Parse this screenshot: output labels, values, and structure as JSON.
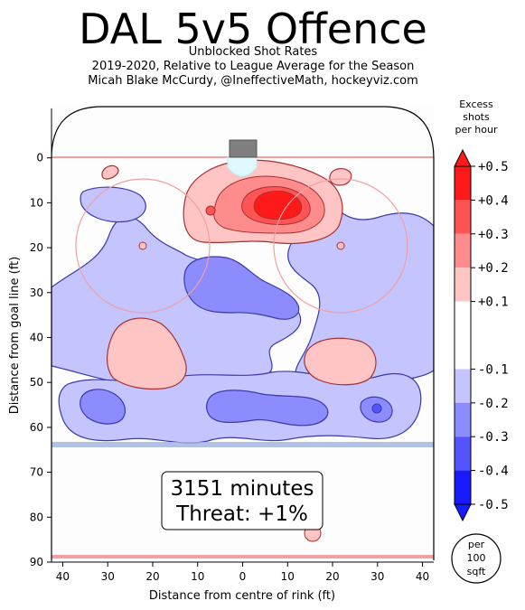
{
  "header": {
    "title": "DAL 5v5 Offence",
    "subtitle1": "Unblocked Shot Rates",
    "subtitle2": "2019-2020, Relative to League Average for the Season",
    "subtitle3": "Micah Blake McCurdy, @IneffectiveMath, hockeyviz.com"
  },
  "chart_data": {
    "type": "heatmap",
    "xlabel": "Distance from centre of rink (ft)",
    "ylabel": "Distance from goal line (ft)",
    "xlim": [
      42.5,
      -42.5
    ],
    "ylim": [
      -11,
      90
    ],
    "x_ticks": [
      40,
      30,
      20,
      10,
      0,
      10,
      20,
      30,
      40
    ],
    "y_ticks": [
      0,
      10,
      20,
      30,
      40,
      50,
      60,
      70,
      80,
      90
    ],
    "annotation": [
      "3151 minutes",
      "Threat: +1%"
    ],
    "colorbar": {
      "title": [
        "Excess",
        "shots",
        "per hour"
      ],
      "unit_note": [
        "per",
        "100",
        "sqft"
      ],
      "ticks": [
        "+0.5",
        "+0.4",
        "+0.3",
        "+0.2",
        "+0.1",
        "-0.1",
        "-0.2",
        "-0.3",
        "-0.4",
        "-0.5"
      ],
      "levels": [
        {
          "from": 0.4,
          "to": 0.5,
          "color": "#ff1a1a"
        },
        {
          "from": 0.3,
          "to": 0.4,
          "color": "#ff5454"
        },
        {
          "from": 0.2,
          "to": 0.3,
          "color": "#ff8c8c"
        },
        {
          "from": 0.1,
          "to": 0.2,
          "color": "#ffc4c4"
        },
        {
          "from": -0.1,
          "to": 0.1,
          "color": "#ffffff"
        },
        {
          "from": -0.2,
          "to": -0.1,
          "color": "#c4c4ff"
        },
        {
          "from": -0.3,
          "to": -0.2,
          "color": "#8c8cff"
        },
        {
          "from": -0.4,
          "to": -0.3,
          "color": "#5454ff"
        },
        {
          "from": -0.5,
          "to": -0.4,
          "color": "#1a1aff"
        }
      ]
    },
    "regions": [
      {
        "name": "left-mid-blue",
        "level": -0.15,
        "x_range": [
          42,
          6
        ],
        "y_range": [
          14,
          50
        ]
      },
      {
        "name": "slot-red-outer",
        "level": 0.15,
        "x_range": [
          16,
          -18
        ],
        "y_range": [
          1,
          19
        ]
      },
      {
        "name": "slot-red-peak",
        "level": 0.45,
        "x_range": [
          2,
          -14
        ],
        "y_range": [
          6,
          14
        ]
      },
      {
        "name": "high-slot-blue",
        "level": -0.25,
        "x_range": [
          6,
          -14
        ],
        "y_range": [
          22,
          36
        ]
      },
      {
        "name": "right-mid-blue",
        "level": -0.15,
        "x_range": [
          -6,
          -42
        ],
        "y_range": [
          18,
          50
        ]
      },
      {
        "name": "left-faceoff-red",
        "level": 0.15,
        "x_range": [
          28,
          14
        ],
        "y_range": [
          38,
          51
        ]
      },
      {
        "name": "right-point-red",
        "level": 0.15,
        "x_range": [
          -16,
          -30
        ],
        "y_range": [
          40,
          50
        ]
      },
      {
        "name": "point-blue-band",
        "level": -0.15,
        "x_range": [
          42,
          -42
        ],
        "y_range": [
          47,
          63
        ]
      },
      {
        "name": "point-blue-left",
        "level": -0.25,
        "x_range": [
          37,
          22
        ],
        "y_range": [
          51,
          58
        ]
      },
      {
        "name": "point-blue-centre",
        "level": -0.25,
        "x_range": [
          6,
          -20
        ],
        "y_range": [
          52,
          59
        ]
      },
      {
        "name": "point-blue-right",
        "level": -0.35,
        "x_range": [
          -31,
          -34
        ],
        "y_range": [
          54,
          57
        ]
      }
    ]
  }
}
